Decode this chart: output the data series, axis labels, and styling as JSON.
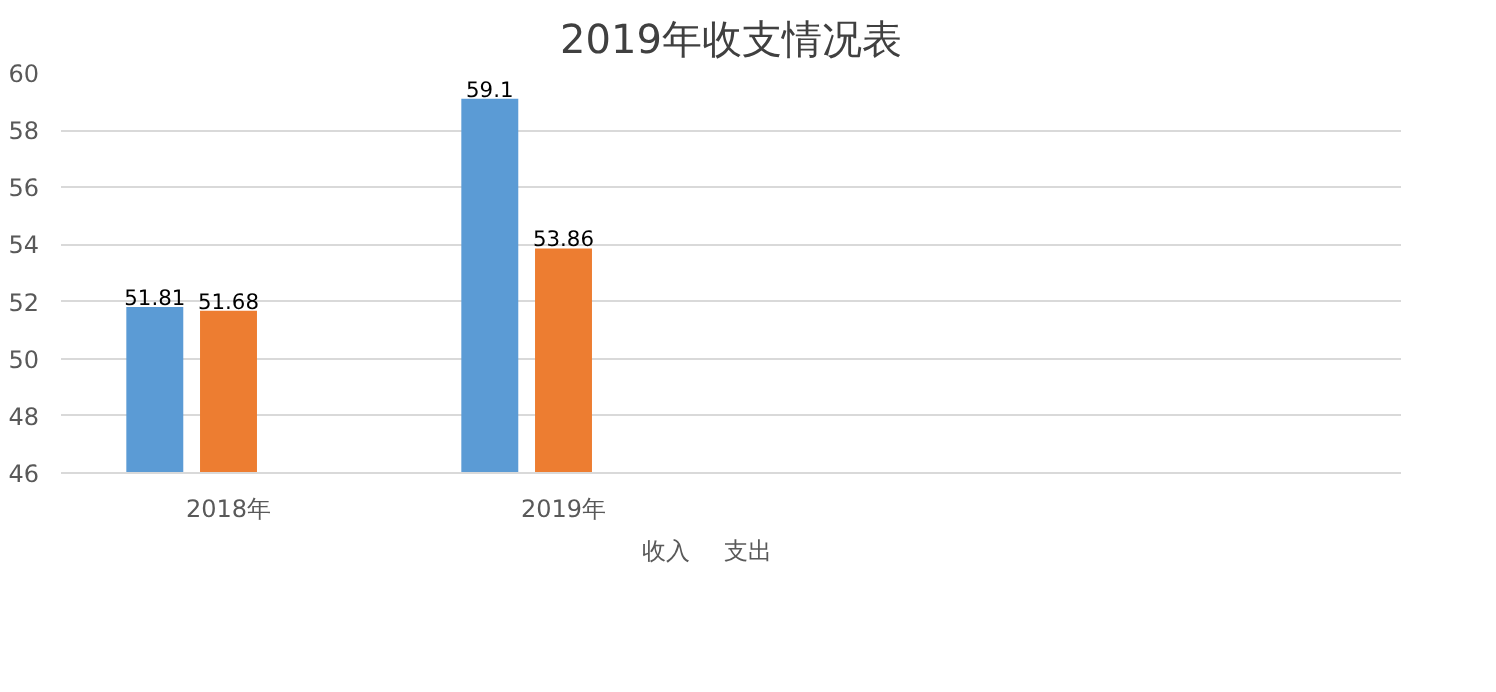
{
  "chart_data": {
    "type": "bar",
    "title": "2019年收支情况表",
    "categories": [
      "2018年",
      "2019年",
      null,
      null
    ],
    "series": [
      {
        "name": "收入",
        "color": "#5b9bd5",
        "values": [
          51.81,
          59.1,
          null,
          null
        ]
      },
      {
        "name": "支出",
        "color": "#ed7d31",
        "values": [
          51.68,
          53.86,
          null,
          null
        ]
      },
      {
        "color": "#a5a5a5",
        "values": [
          null,
          null,
          null,
          null
        ]
      }
    ],
    "ylim": [
      46,
      60
    ],
    "yticks": [
      46,
      48,
      50,
      52,
      54,
      56,
      58,
      60
    ],
    "grid": "y",
    "legend": "bottom",
    "data_labels": true
  }
}
